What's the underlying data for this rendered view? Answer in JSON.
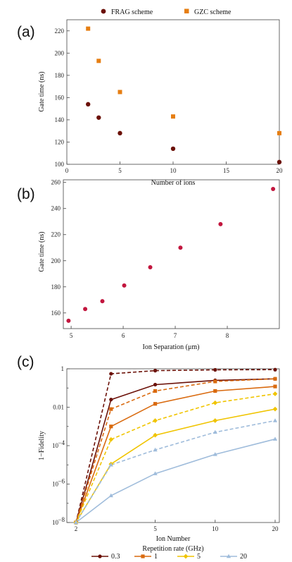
{
  "colors": {
    "frag": "#6b1007",
    "gzc": "#e67e12",
    "panel_b": "#c2163e",
    "c_series": [
      "#6b1007",
      "#d96a0f",
      "#f0c400",
      "#9fbcdb"
    ]
  },
  "chart_data": [
    {
      "panel_label": "(a)",
      "type": "scatter",
      "xlabel": "Number of ions",
      "ylabel": "Gate time (ns)",
      "xlim": [
        0,
        20
      ],
      "ylim": [
        100,
        230
      ],
      "xticks": [
        0,
        5,
        10,
        15,
        20
      ],
      "yticks": [
        100,
        120,
        140,
        160,
        180,
        200,
        220
      ],
      "legend_position": "top",
      "series": [
        {
          "name": "FRAG scheme",
          "marker": "circle",
          "points": [
            [
              2,
              154
            ],
            [
              3,
              142
            ],
            [
              5,
              128
            ],
            [
              10,
              114
            ],
            [
              20,
              102
            ]
          ]
        },
        {
          "name": "GZC scheme",
          "marker": "square",
          "points": [
            [
              2,
              222
            ],
            [
              3,
              193
            ],
            [
              5,
              165
            ],
            [
              10,
              143
            ],
            [
              20,
              128
            ]
          ]
        }
      ]
    },
    {
      "panel_label": "(b)",
      "type": "scatter",
      "xlabel": "Ion Separation (μm)",
      "ylabel": "Gate time (ns)",
      "xlim": [
        4.85,
        9.0
      ],
      "ylim": [
        148,
        262
      ],
      "xticks": [
        5,
        6,
        7,
        8
      ],
      "yticks": [
        160,
        180,
        200,
        220,
        240,
        260
      ],
      "series": [
        {
          "points": [
            [
              4.95,
              154
            ],
            [
              5.27,
              163
            ],
            [
              5.6,
              169
            ],
            [
              6.02,
              181
            ],
            [
              6.52,
              195
            ],
            [
              7.1,
              210
            ],
            [
              7.87,
              228
            ],
            [
              8.88,
              255
            ]
          ]
        }
      ]
    },
    {
      "panel_label": "(c)",
      "type": "line",
      "xlabel": "Ion Number",
      "ylabel": "1−Fidelity",
      "xscale": "log",
      "yscale": "log",
      "xlim": [
        1.8,
        21
      ],
      "ylim": [
        1e-08,
        1
      ],
      "xticks": [
        2,
        5,
        10,
        20
      ],
      "yticks": [
        {
          "v": 1e-08,
          "t": "10"
        },
        {
          "v": 1e-06,
          "t": "10"
        },
        {
          "v": 0.0001,
          "t": "10"
        },
        {
          "v": 0.01,
          "t": "0.01"
        },
        {
          "v": 1,
          "t": "1"
        }
      ],
      "ytick_exponents": [
        "−8",
        "−6",
        "−4",
        "",
        ""
      ],
      "legend_title": "Repetition rate (GHz)",
      "legend_position": "bottom",
      "x": [
        2,
        3,
        5,
        10,
        20
      ],
      "series": [
        {
          "name": "0.3",
          "marker": "circle",
          "dashed": false,
          "values": [
            1e-08,
            0.025,
            0.15,
            0.25,
            0.3
          ]
        },
        {
          "name": "0.3",
          "marker": "circle",
          "dashed": true,
          "values": [
            1e-08,
            0.55,
            0.8,
            0.88,
            0.9
          ]
        },
        {
          "name": "1",
          "marker": "square",
          "dashed": false,
          "values": [
            1e-08,
            0.001,
            0.015,
            0.07,
            0.12
          ]
        },
        {
          "name": "1",
          "marker": "square",
          "dashed": true,
          "values": [
            1e-08,
            0.008,
            0.07,
            0.22,
            0.3
          ]
        },
        {
          "name": "5",
          "marker": "diamond",
          "dashed": false,
          "values": [
            1e-08,
            1.1e-05,
            0.00035,
            0.002,
            0.008
          ]
        },
        {
          "name": "5",
          "marker": "diamond",
          "dashed": true,
          "values": [
            1e-08,
            0.00021,
            0.002,
            0.017,
            0.05
          ]
        },
        {
          "name": "20",
          "marker": "triangle",
          "dashed": false,
          "values": [
            1e-08,
            2.5e-07,
            3.5e-06,
            3.5e-05,
            0.00022
          ]
        },
        {
          "name": "20",
          "marker": "triangle",
          "dashed": true,
          "values": [
            1e-08,
            1e-05,
            6e-05,
            0.0005,
            0.002
          ]
        }
      ],
      "legend_entries": [
        "0.3",
        "1",
        "5",
        "20"
      ]
    }
  ]
}
